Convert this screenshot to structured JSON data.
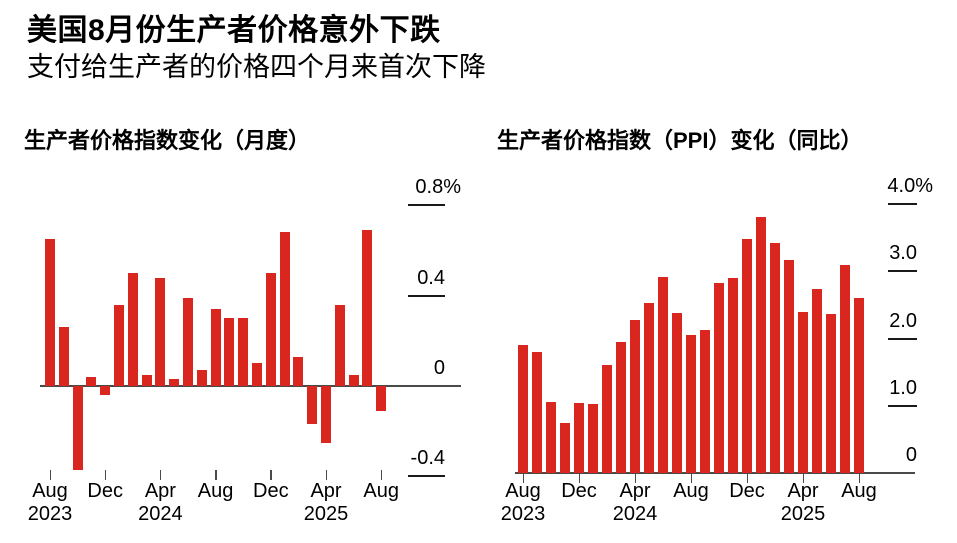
{
  "header": {
    "title": "美国8月份生产者价格意外下跌",
    "subtitle": "支付给生产者的价格四个月来首次下降"
  },
  "colors": {
    "bar": "#d9261f",
    "axis": "#4a4a4a",
    "grid_segment": "#1a1a1a",
    "text": "#000000",
    "background": "#ffffff"
  },
  "chart_data": [
    {
      "type": "bar",
      "title": "生产者价格指数变化（月度）",
      "unit": "%",
      "legend": "none",
      "grid": "short right-side tick segments under y labels; zero line spans plot",
      "categories": [
        "Aug 2023",
        "Sep 2023",
        "Oct 2023",
        "Nov 2023",
        "Dec 2023",
        "Jan 2024",
        "Feb 2024",
        "Mar 2024",
        "Apr 2024",
        "May 2024",
        "Jun 2024",
        "Jul 2024",
        "Aug 2024",
        "Sep 2024",
        "Oct 2024",
        "Nov 2024",
        "Dec 2024",
        "Jan 2025",
        "Feb 2025",
        "Mar 2025",
        "Apr 2025",
        "May 2025",
        "Jun 2025",
        "Jul 2025",
        "Aug 2025"
      ],
      "values": [
        0.65,
        0.26,
        -0.37,
        0.04,
        -0.04,
        0.36,
        0.5,
        0.05,
        0.48,
        0.03,
        0.39,
        0.07,
        0.34,
        0.3,
        0.3,
        0.1,
        0.5,
        0.68,
        0.13,
        -0.17,
        -0.25,
        0.36,
        0.05,
        0.69,
        -0.11
      ],
      "ylim": [
        -0.4,
        0.8
      ],
      "yticks": [
        {
          "value": 0.8,
          "label": "0.8%"
        },
        {
          "value": 0.4,
          "label": "0.4"
        },
        {
          "value": 0,
          "label": "0"
        },
        {
          "value": -0.4,
          "label": "-0.4"
        }
      ],
      "xticks": [
        {
          "index": 0,
          "label": "Aug",
          "year": "2023"
        },
        {
          "index": 4,
          "label": "Dec"
        },
        {
          "index": 8,
          "label": "Apr",
          "year": "2024"
        },
        {
          "index": 12,
          "label": "Aug"
        },
        {
          "index": 16,
          "label": "Dec"
        },
        {
          "index": 20,
          "label": "Apr",
          "year": "2025"
        },
        {
          "index": 24,
          "label": "Aug"
        }
      ]
    },
    {
      "type": "bar",
      "title": "生产者价格指数（PPI）变化（同比）",
      "unit": "%",
      "legend": "none",
      "grid": "short right-side tick segments under y labels; zero line spans plot",
      "categories": [
        "Aug 2023",
        "Sep 2023",
        "Oct 2023",
        "Nov 2023",
        "Dec 2023",
        "Jan 2024",
        "Feb 2024",
        "Mar 2024",
        "Apr 2024",
        "May 2024",
        "Jun 2024",
        "Jul 2024",
        "Aug 2024",
        "Sep 2024",
        "Oct 2024",
        "Nov 2024",
        "Dec 2024",
        "Jan 2025",
        "Feb 2025",
        "Mar 2025",
        "Apr 2025",
        "May 2025",
        "Jun 2025",
        "Jul 2025",
        "Aug 2025"
      ],
      "values": [
        1.9,
        1.8,
        1.05,
        0.75,
        1.04,
        1.02,
        1.6,
        1.95,
        2.28,
        2.53,
        2.92,
        2.38,
        2.05,
        2.13,
        2.83,
        2.9,
        3.48,
        3.8,
        3.42,
        3.17,
        2.4,
        2.73,
        2.37,
        3.1,
        2.6
      ],
      "ylim": [
        0,
        4.0
      ],
      "yticks": [
        {
          "value": 4,
          "label": "4.0%"
        },
        {
          "value": 3,
          "label": "3.0"
        },
        {
          "value": 2,
          "label": "2.0"
        },
        {
          "value": 1,
          "label": "1.0"
        },
        {
          "value": 0,
          "label": "0"
        }
      ],
      "xticks": [
        {
          "index": 0,
          "label": "Aug",
          "year": "2023"
        },
        {
          "index": 4,
          "label": "Dec"
        },
        {
          "index": 8,
          "label": "Apr",
          "year": "2024"
        },
        {
          "index": 12,
          "label": "Aug"
        },
        {
          "index": 16,
          "label": "Dec"
        },
        {
          "index": 20,
          "label": "Apr",
          "year": "2025"
        },
        {
          "index": 24,
          "label": "Aug"
        }
      ]
    }
  ]
}
